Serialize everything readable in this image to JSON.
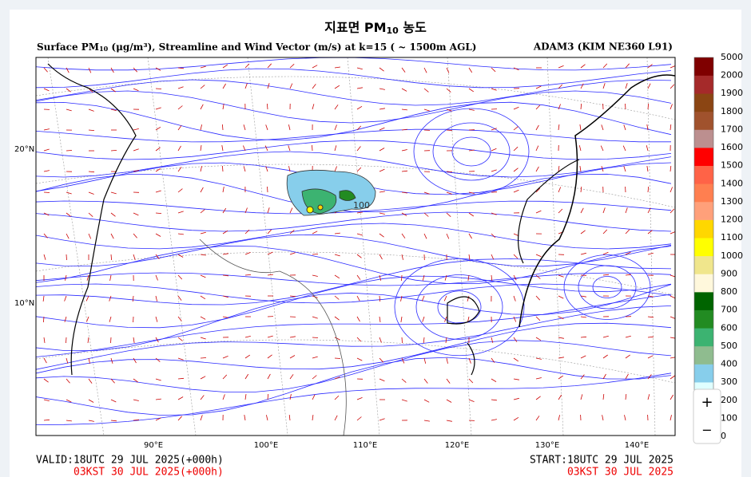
{
  "header": {
    "title": {
      "main": "지표면 PM",
      "sub": "10",
      "tail": "농도"
    },
    "subtitle": {
      "a": "Surface PM",
      "sub": "10",
      "b": "(μg/m³), Streamline and Wind Vector (m/s) at k=15 ( ~ 1500m AGL)"
    },
    "model": "ADAM3 (KIM NE360 L91)"
  },
  "map": {
    "lat_labels": [
      "20°N",
      "10°N"
    ],
    "lon_labels": [
      "90°E",
      "100°E",
      "110°E",
      "120°E",
      "130°E",
      "140°E"
    ],
    "contour_label": "100"
  },
  "colorbar": {
    "labels": [
      "0",
      "100",
      "200",
      "300",
      "400",
      "500",
      "600",
      "700",
      "800",
      "900",
      "1000",
      "1100",
      "1200",
      "1300",
      "1400",
      "1500",
      "1600",
      "1700",
      "1800",
      "1900",
      "2000",
      "5000"
    ],
    "colors": [
      "#ffffff",
      "#ffffff",
      "#e0ffff",
      "#87ceeb",
      "#8fbc8f",
      "#3cb371",
      "#228b22",
      "#006400",
      "#fff8dc",
      "#f0e68c",
      "#ffff00",
      "#ffd700",
      "#ffa07a",
      "#ff7f50",
      "#ff6347",
      "#ff0000",
      "#bc8f8f",
      "#a0522d",
      "#8b4513",
      "#a52a2a",
      "#7f0000"
    ]
  },
  "footer": {
    "valid": "VALID:18UTC 29 JUL 2025(+000h)",
    "start": "START:18UTC 29 JUL 2025",
    "valid_kst": "03KST 30 JUL 2025(+000h)",
    "start_kst": "03KST 30 JUL 2025"
  },
  "zoom": {
    "in": "+",
    "out": "−"
  }
}
